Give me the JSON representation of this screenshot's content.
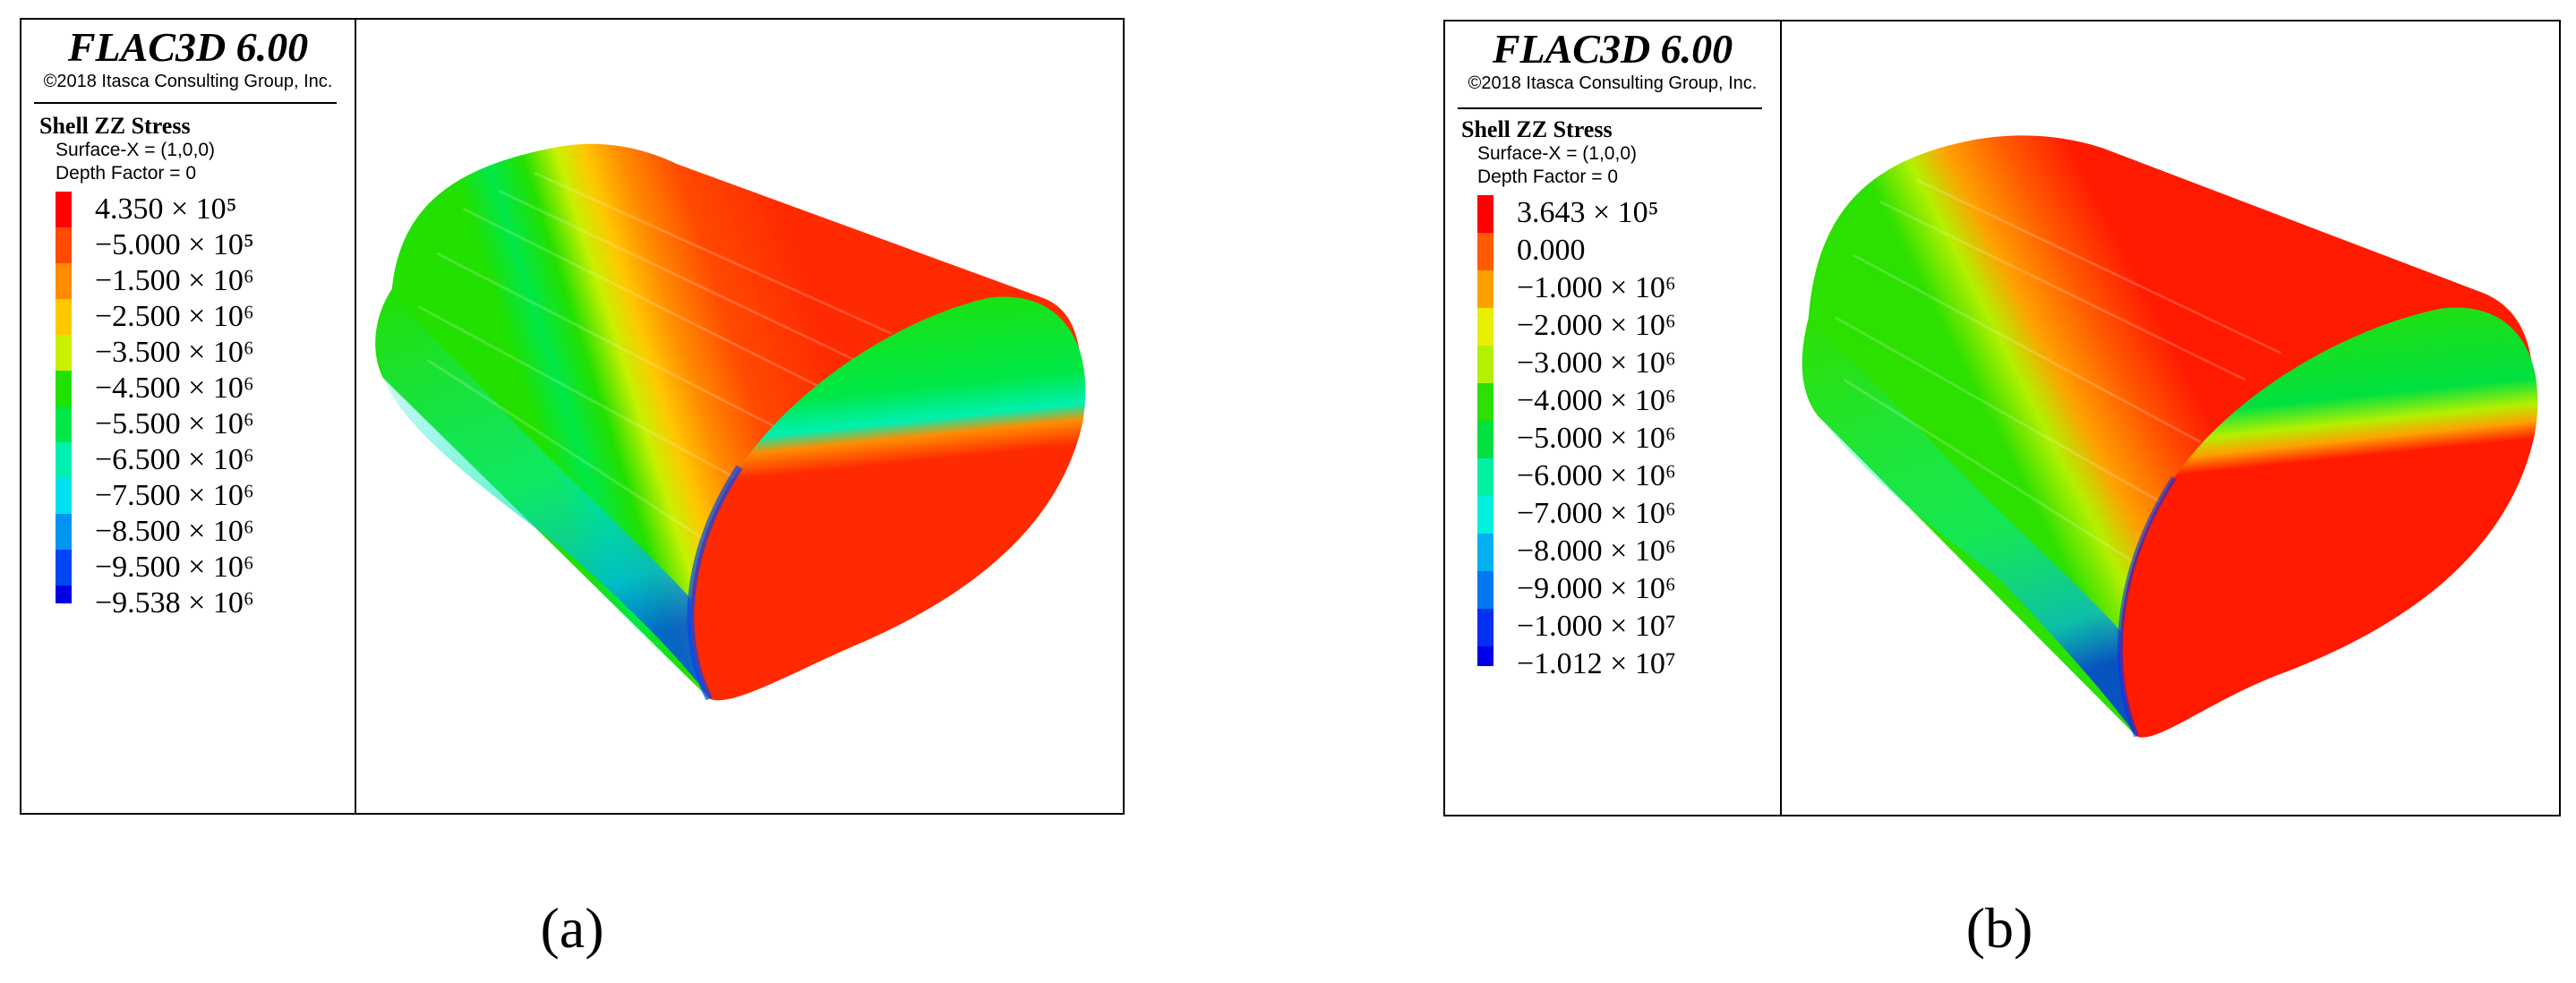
{
  "panels": [
    {
      "title": "FLAC3D 6.00",
      "copyright": "©2018 Itasca Consulting Group, Inc.",
      "plot_name": "Shell ZZ Stress",
      "surface": "Surface-X = (1,0,0)",
      "depth_factor": "Depth Factor = 0",
      "legend": [
        {
          "label": "4.350 × 10⁵",
          "color": "#ff0000"
        },
        {
          "label": "−5.000 × 10⁵",
          "color": "#ff4a00"
        },
        {
          "label": "−1.500 × 10⁶",
          "color": "#ff8c00"
        },
        {
          "label": "−2.500 × 10⁶",
          "color": "#ffc800"
        },
        {
          "label": "−3.500 × 10⁶",
          "color": "#c8f000"
        },
        {
          "label": "−4.500 × 10⁶",
          "color": "#22e000"
        },
        {
          "label": "−5.500 × 10⁶",
          "color": "#00e848"
        },
        {
          "label": "−6.500 × 10⁶",
          "color": "#00f0b0"
        },
        {
          "label": "−7.500 × 10⁶",
          "color": "#00e0f0"
        },
        {
          "label": "−8.500 × 10⁶",
          "color": "#0096f0"
        },
        {
          "label": "−9.500 × 10⁶",
          "color": "#0046f0"
        },
        {
          "label": "−9.538 × 10⁶",
          "color": "#0000e6"
        }
      ],
      "caption": "(a)"
    },
    {
      "title": "FLAC3D 6.00",
      "copyright": "©2018 Itasca Consulting Group, Inc.",
      "plot_name": "Shell ZZ Stress",
      "surface": "Surface-X = (1,0,0)",
      "depth_factor": "Depth Factor = 0",
      "legend": [
        {
          "label": "3.643 × 10⁵",
          "color": "#ff0000"
        },
        {
          "label": "0.000",
          "color": "#ff5a00"
        },
        {
          "label": "−1.000 × 10⁶",
          "color": "#ffa000"
        },
        {
          "label": "−2.000 × 10⁶",
          "color": "#e6f000"
        },
        {
          "label": "−3.000 × 10⁶",
          "color": "#b4f000"
        },
        {
          "label": "−4.000 × 10⁶",
          "color": "#2ce000"
        },
        {
          "label": "−5.000 × 10⁶",
          "color": "#00e040"
        },
        {
          "label": "−6.000 × 10⁶",
          "color": "#00f0a0"
        },
        {
          "label": "−7.000 × 10⁶",
          "color": "#00f0e0"
        },
        {
          "label": "−8.000 × 10⁶",
          "color": "#00b0f0"
        },
        {
          "label": "−9.000 × 10⁶",
          "color": "#0078f0"
        },
        {
          "label": "−1.000 × 10⁷",
          "color": "#0030f0"
        },
        {
          "label": "−1.012 × 10⁷",
          "color": "#0000e6"
        }
      ],
      "caption": "(b)"
    }
  ]
}
